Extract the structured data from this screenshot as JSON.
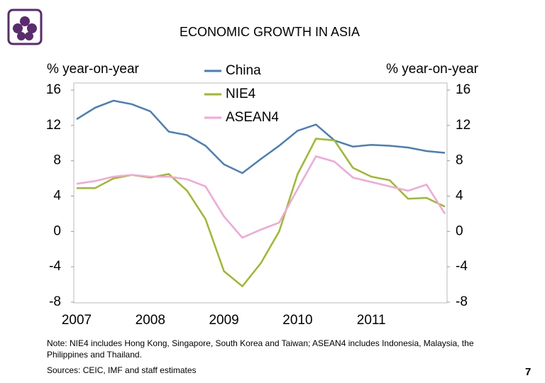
{
  "chart_data": {
    "type": "line",
    "title": "ECONOMIC GROWTH IN ASIA",
    "y_label": "% year-on-year",
    "y2_label": "% year-on-year",
    "categories": [
      "2007",
      null,
      null,
      null,
      "2008",
      null,
      null,
      null,
      "2009",
      null,
      null,
      null,
      "2010",
      null,
      null,
      null,
      "2011",
      null,
      null,
      null,
      null
    ],
    "series": [
      {
        "name": "China",
        "color": "#4a7ebb",
        "values": [
          12.7,
          14.0,
          14.8,
          14.4,
          13.6,
          11.3,
          10.9,
          9.7,
          7.6,
          6.6,
          8.2,
          9.7,
          11.4,
          12.1,
          10.3,
          9.6,
          9.8,
          9.7,
          9.5,
          9.1,
          8.9
        ]
      },
      {
        "name": "NIE4",
        "color": "#9bbb2a",
        "values": [
          4.9,
          4.9,
          6.0,
          6.4,
          6.1,
          6.5,
          4.6,
          1.4,
          -4.5,
          -6.2,
          -3.6,
          0.0,
          6.5,
          10.5,
          10.3,
          7.2,
          6.2,
          5.8,
          3.7,
          3.8,
          2.8
        ]
      },
      {
        "name": "ASEAN4",
        "color": "#f4a6d7",
        "values": [
          5.4,
          5.7,
          6.2,
          6.4,
          6.2,
          6.2,
          5.9,
          5.1,
          1.7,
          -0.7,
          0.2,
          1.0,
          4.8,
          8.5,
          7.9,
          6.1,
          5.6,
          5.1,
          4.6,
          5.3,
          2.0
        ]
      }
    ],
    "ylim": [
      -8,
      16
    ],
    "yticks": [
      -8,
      -4,
      0,
      4,
      8,
      12,
      16
    ],
    "y2lim": [
      -8,
      16
    ],
    "y2ticks": [
      -8,
      -4,
      0,
      4,
      8,
      12,
      16
    ],
    "grid": false,
    "legend": "top",
    "note": "Note: NIE4 includes Hong Kong, Singapore, South Korea and Taiwan; ASEAN4 includes Indonesia, Malaysia, the Philippines and Thailand.",
    "source": "Sources: CEIC, IMF and staff estimates",
    "page_number": "7"
  }
}
